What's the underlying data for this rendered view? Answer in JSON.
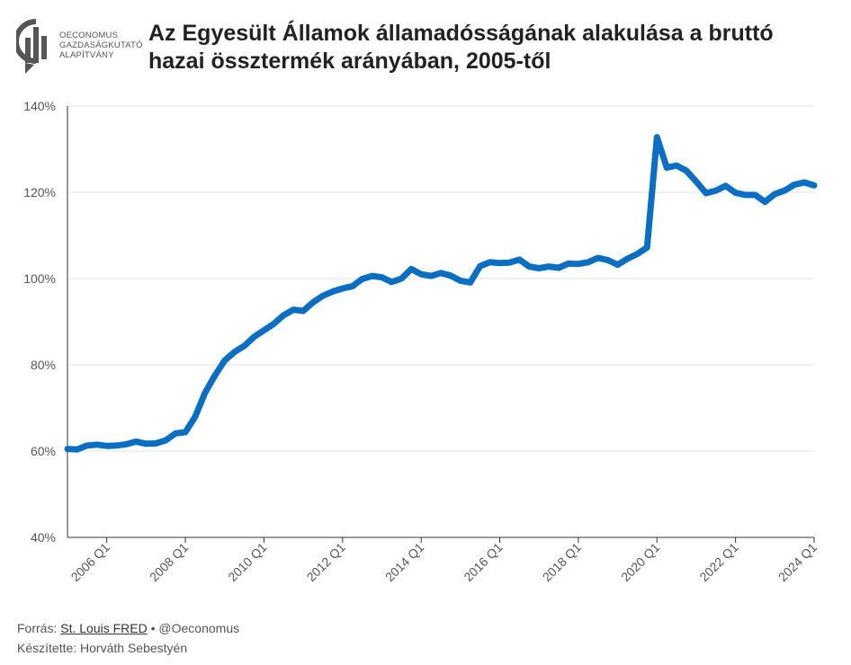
{
  "logo": {
    "name": "oeconomus-logo",
    "lines": [
      "OECONOMUS",
      "GAZDASÁGKUTATÓ",
      "ALAPÍTVÁNY"
    ],
    "color": "#555555"
  },
  "footer": {
    "source_prefix": "Forrás: ",
    "source_link": "St. Louis FRED",
    "separator": " • ",
    "handle": "@Oeconomus",
    "author": "Készítette: Horváth Sebestyén"
  },
  "chart_data": {
    "type": "line",
    "title": "Az Egyesült Államok államadósságának alakulása a bruttó hazai össztermék arányában, 2005-től",
    "xlabel": "",
    "ylabel": "",
    "ylim": [
      40,
      140
    ],
    "yticks": [
      "40%",
      "60%",
      "80%",
      "100%",
      "120%",
      "140%"
    ],
    "xlim": [
      2005.0,
      2024.0
    ],
    "xticks": [
      "2006 Q1",
      "2008 Q1",
      "2010 Q1",
      "2012 Q1",
      "2014 Q1",
      "2016 Q1",
      "2018 Q1",
      "2020 Q1",
      "2022 Q1",
      "2024 Q1"
    ],
    "grid": true,
    "line_color": "#0a6fc2",
    "series": [
      {
        "x": [
          2005.0,
          2005.25,
          2005.5,
          2005.75,
          2006.0,
          2006.25,
          2006.5,
          2006.75,
          2007.0,
          2007.25,
          2007.5,
          2007.75,
          2008.0,
          2008.25,
          2008.5,
          2008.75,
          2009.0,
          2009.25,
          2009.5,
          2009.75,
          2010.0,
          2010.25,
          2010.5,
          2010.75,
          2011.0,
          2011.25,
          2011.5,
          2011.75,
          2012.0,
          2012.25,
          2012.5,
          2012.75,
          2013.0,
          2013.25,
          2013.5,
          2013.75,
          2014.0,
          2014.25,
          2014.5,
          2014.75,
          2015.0,
          2015.25,
          2015.5,
          2015.75,
          2016.0,
          2016.25,
          2016.5,
          2016.75,
          2017.0,
          2017.25,
          2017.5,
          2017.75,
          2018.0,
          2018.25,
          2018.5,
          2018.75,
          2019.0,
          2019.25,
          2019.5,
          2019.75,
          2020.0,
          2020.25,
          2020.5,
          2020.75,
          2021.0,
          2021.25,
          2021.5,
          2021.75,
          2022.0,
          2022.25,
          2022.5,
          2022.75,
          2023.0,
          2023.25,
          2023.5,
          2023.75,
          2024.0
        ],
        "values": [
          60.5,
          60.4,
          61.3,
          61.5,
          61.2,
          61.3,
          61.6,
          62.2,
          61.7,
          61.8,
          62.5,
          64.1,
          64.4,
          68.0,
          73.5,
          77.5,
          81.0,
          83.0,
          84.4,
          86.5,
          88.0,
          89.5,
          91.5,
          92.8,
          92.5,
          94.5,
          96.0,
          97.0,
          97.7,
          98.2,
          99.9,
          100.6,
          100.3,
          99.2,
          100.0,
          102.2,
          101.0,
          100.6,
          101.3,
          100.7,
          99.5,
          99.1,
          102.9,
          103.8,
          103.6,
          103.7,
          104.4,
          102.8,
          102.4,
          102.8,
          102.5,
          103.5,
          103.4,
          103.8,
          104.8,
          104.3,
          103.2,
          104.6,
          105.7,
          107.2,
          132.8,
          125.7,
          126.2,
          125.0,
          122.5,
          119.8,
          120.4,
          121.5,
          119.9,
          119.4,
          119.4,
          117.8,
          119.6,
          120.4,
          121.8,
          122.3,
          121.6
        ]
      }
    ]
  }
}
